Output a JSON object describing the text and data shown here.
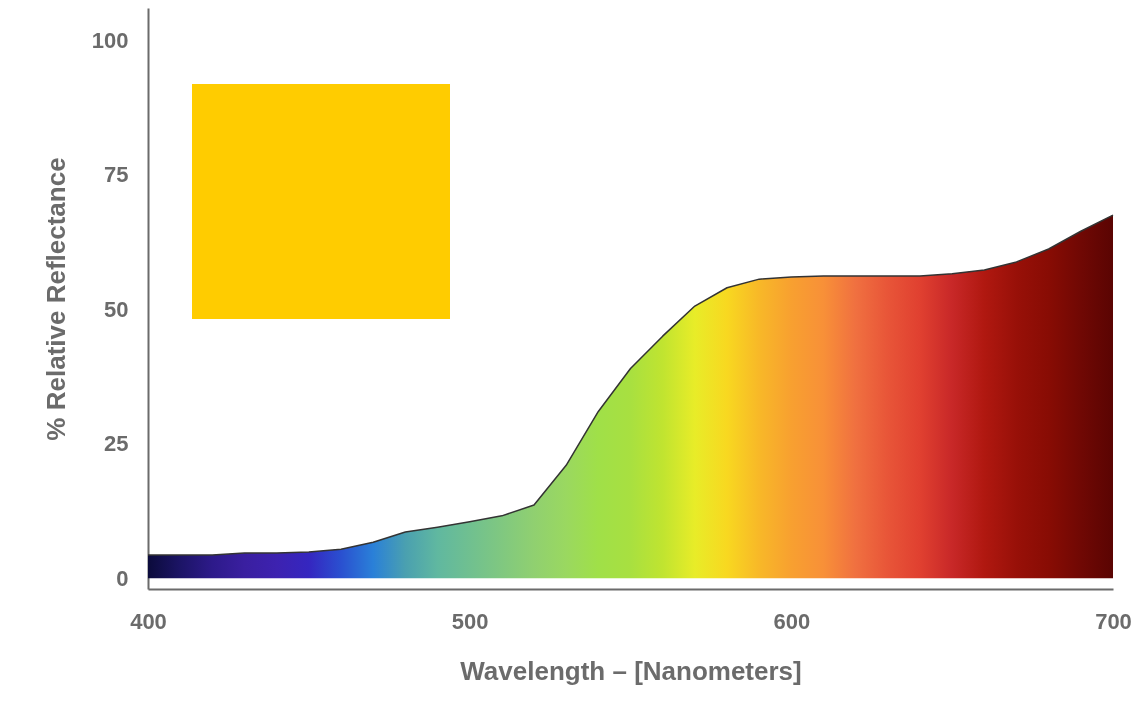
{
  "chart_data": {
    "type": "area",
    "xlabel": "Wavelength – [Nanometers]",
    "ylabel": "% Relative Reflectance",
    "x": [
      400,
      410,
      420,
      430,
      440,
      450,
      460,
      470,
      480,
      490,
      500,
      510,
      520,
      530,
      540,
      550,
      560,
      570,
      580,
      590,
      600,
      610,
      620,
      630,
      640,
      650,
      660,
      670,
      680,
      690,
      700
    ],
    "series": [
      {
        "values": [
          4.3,
          4.3,
          4.3,
          4.7,
          4.7,
          4.9,
          5.4,
          6.7,
          8.6,
          9.5,
          10.5,
          11.6,
          13.6,
          21,
          31,
          39,
          45,
          50.6,
          54,
          55.6,
          56,
          56.2,
          56.2,
          56.2,
          56.2,
          56.6,
          57.3,
          58.8,
          61.2,
          64.5,
          67.5
        ],
        "colors": [
          "#0b0b3b",
          "#1c1466",
          "#2d1a8a",
          "#3a1fa0",
          "#3d22b0",
          "#3526c0",
          "#2a50d0",
          "#2a80d8",
          "#4aa0b0",
          "#60b8a0",
          "#70c090",
          "#80c880",
          "#90d070",
          "#9ad860",
          "#a0e048",
          "#a8e040",
          "#c0e430",
          "#e8ec28",
          "#f8d820",
          "#f8b828",
          "#f8a030",
          "#f89038",
          "#f07040",
          "#e85538",
          "#e04030",
          "#c82828",
          "#b01810",
          "#981008",
          "#880c04",
          "#700804",
          "#5a0402"
        ]
      }
    ],
    "xlim": [
      400,
      700
    ],
    "xticks": [
      400,
      500,
      600,
      700
    ],
    "ylim": [
      -2,
      106
    ],
    "yticks": [
      0,
      25,
      50,
      75,
      100
    ],
    "grid": false
  }
}
